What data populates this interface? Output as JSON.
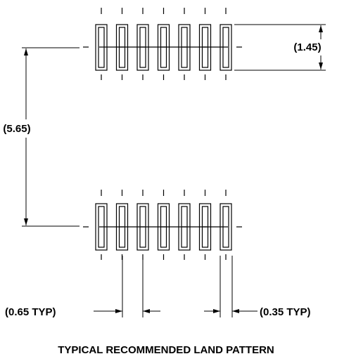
{
  "title": "TYPICAL RECOMMENDED LAND PATTERN",
  "dimensions": {
    "pad_length": "(1.45)",
    "row_spacing": "(5.65)",
    "pitch": "(0.65 TYP)",
    "pad_width": "(0.35 TYP)"
  },
  "pattern": {
    "rows": 2,
    "pads_per_row": 7
  },
  "colors": {
    "line": "#000000",
    "background": "#ffffff"
  }
}
